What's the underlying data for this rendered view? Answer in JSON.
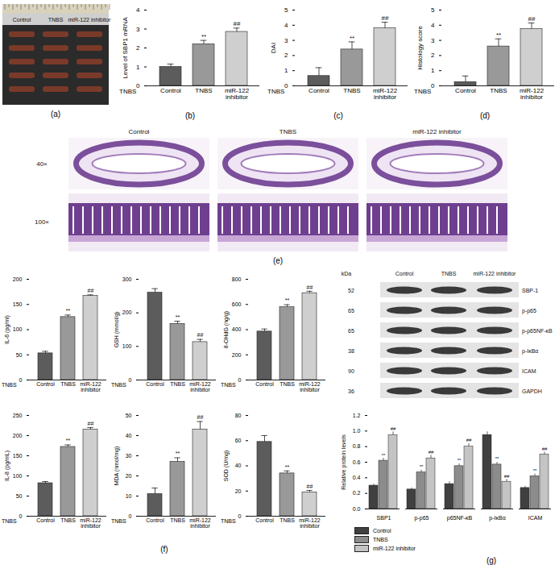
{
  "panel_labels": [
    "(a)",
    "(b)",
    "(c)",
    "(d)",
    "(e)",
    "(f)",
    "(g)"
  ],
  "images": {
    "a": {
      "columns": [
        "Control",
        "TNBS",
        "miR-122 inhibitor"
      ]
    },
    "e": {
      "columns": [
        "Control",
        "TNBS",
        "miR-122 inhibitor"
      ],
      "rows": [
        "40×",
        "100×"
      ]
    },
    "g_blot": {
      "kda_label": "kDa",
      "columns": [
        "Control",
        "TNBS",
        "miR-122 inhibitor"
      ],
      "rows": [
        {
          "kda": 52,
          "label": "SBP-1"
        },
        {
          "kda": 65,
          "label": "p-p65"
        },
        {
          "kda": 65,
          "label": "p-p65NF-κB"
        },
        {
          "kda": 38,
          "label": "p-IκBα"
        },
        {
          "kda": 90,
          "label": "ICAM"
        },
        {
          "kda": 36,
          "label": "GAPDH"
        }
      ]
    }
  },
  "chart_data": [
    {
      "type": "bar",
      "y_label": "Level of SBP1 mRNA",
      "x_label": "TNBS",
      "categories": [
        "Control",
        "TNBS",
        "miR-122 inhibitor"
      ],
      "values": [
        1.0,
        2.2,
        2.85
      ],
      "errors": [
        0.15,
        0.2,
        0.2
      ],
      "annotations": [
        null,
        "**",
        "##"
      ],
      "colors": [
        "#5c5c5c",
        "#999999",
        "#cfcfcf"
      ],
      "ylim": [
        0,
        4
      ],
      "yticks": [
        0,
        1,
        2,
        3,
        4
      ]
    },
    {
      "type": "bar",
      "y_label": "DAI",
      "x_label": "TNBS",
      "categories": [
        "Control",
        "TNBS",
        "miR-122 inhibitor"
      ],
      "values": [
        0.65,
        2.4,
        3.8
      ],
      "errors": [
        0.55,
        0.5,
        0.4
      ],
      "annotations": [
        null,
        "**",
        "##"
      ],
      "colors": [
        "#5c5c5c",
        "#999999",
        "#cfcfcf"
      ],
      "ylim": [
        0,
        5
      ],
      "yticks": [
        0,
        1,
        2,
        3,
        4,
        5
      ]
    },
    {
      "type": "bar",
      "y_label": "Histology score",
      "x_label": "TNBS",
      "categories": [
        "Control",
        "TNBS",
        "miR-122 inhibitor"
      ],
      "values": [
        0.25,
        2.6,
        3.75
      ],
      "errors": [
        0.4,
        0.5,
        0.4
      ],
      "annotations": [
        null,
        "**",
        "##"
      ],
      "colors": [
        "#5c5c5c",
        "#999999",
        "#cfcfcf"
      ],
      "ylim": [
        0,
        5
      ],
      "yticks": [
        0,
        1,
        2,
        3,
        4,
        5
      ]
    },
    {
      "type": "bar",
      "y_label": "IL-6 (pg/ml)",
      "x_label": "TNBS",
      "categories": [
        "Control",
        "TNBS",
        "miR-122 inhibitor"
      ],
      "values": [
        53,
        125,
        167
      ],
      "errors": [
        4,
        4,
        2
      ],
      "annotations": [
        null,
        "**",
        "##"
      ],
      "colors": [
        "#5c5c5c",
        "#999999",
        "#cfcfcf"
      ],
      "ylim": [
        0,
        200
      ],
      "yticks": [
        0,
        50,
        100,
        150,
        200
      ]
    },
    {
      "type": "bar",
      "y_label": "GSH (mmol/g)",
      "x_label": "TNBS",
      "categories": [
        "Control",
        "TNBS",
        "miR-122 inhibitor"
      ],
      "values": [
        260,
        167,
        113
      ],
      "errors": [
        12,
        8,
        8
      ],
      "annotations": [
        null,
        "**",
        "##"
      ],
      "colors": [
        "#5c5c5c",
        "#999999",
        "#cfcfcf"
      ],
      "ylim": [
        0,
        300
      ],
      "yticks": [
        0,
        100,
        200,
        300
      ]
    },
    {
      "type": "bar",
      "y_label": "8-OHdG (ng/g)",
      "x_label": "TNBS",
      "categories": [
        "Control",
        "TNBS",
        "miR-122 inhibitor"
      ],
      "values": [
        385,
        578,
        690
      ],
      "errors": [
        20,
        20,
        15
      ],
      "annotations": [
        null,
        "**",
        "##"
      ],
      "colors": [
        "#5c5c5c",
        "#999999",
        "#cfcfcf"
      ],
      "ylim": [
        0,
        800
      ],
      "yticks": [
        0,
        200,
        400,
        600,
        800
      ]
    },
    {
      "type": "bar",
      "y_label": "IL-8 (pg/mL)",
      "x_label": "TNBS",
      "categories": [
        "Control",
        "TNBS",
        "miR-122 inhibitor"
      ],
      "values": [
        82,
        172,
        215
      ],
      "errors": [
        4,
        5,
        5
      ],
      "annotations": [
        null,
        "**",
        "##"
      ],
      "colors": [
        "#5c5c5c",
        "#999999",
        "#cfcfcf"
      ],
      "ylim": [
        0,
        250
      ],
      "yticks": [
        0,
        50,
        100,
        150,
        200,
        250
      ]
    },
    {
      "type": "bar",
      "y_label": "MDA (nmol/mg)",
      "x_label": "TNBS",
      "categories": [
        "Control",
        "TNBS",
        "miR-122 inhibitor"
      ],
      "values": [
        11,
        27,
        43
      ],
      "errors": [
        3,
        2,
        4
      ],
      "annotations": [
        null,
        "**",
        "##"
      ],
      "colors": [
        "#5c5c5c",
        "#999999",
        "#cfcfcf"
      ],
      "ylim": [
        0,
        50
      ],
      "yticks": [
        0,
        10,
        20,
        30,
        40,
        50
      ]
    },
    {
      "type": "bar",
      "y_label": "SOD (U/mg)",
      "x_label": "TNBS",
      "categories": [
        "Control",
        "TNBS",
        "miR-122 inhibitor"
      ],
      "values": [
        59,
        34,
        19
      ],
      "errors": [
        5,
        2,
        1.5
      ],
      "annotations": [
        null,
        "**",
        "##"
      ],
      "colors": [
        "#5c5c5c",
        "#999999",
        "#cfcfcf"
      ],
      "ylim": [
        0,
        80
      ],
      "yticks": [
        0,
        20,
        40,
        60,
        80
      ]
    },
    {
      "type": "grouped_bar",
      "y_label": "Relative protein levels",
      "categories": [
        "SBP1",
        "p-p65",
        "p65NF-κB",
        "p-IκBα",
        "ICAM"
      ],
      "series": [
        {
          "name": "Control",
          "color": "#404040",
          "values": [
            0.3,
            0.25,
            0.32,
            0.95,
            0.27
          ],
          "errors": [
            0.02,
            0.02,
            0.03,
            0.04,
            0.02
          ],
          "annotations": [
            null,
            null,
            null,
            null,
            null
          ]
        },
        {
          "name": "TNBS",
          "color": "#8c8c8c",
          "values": [
            0.62,
            0.47,
            0.55,
            0.57,
            0.42
          ],
          "errors": [
            0.03,
            0.03,
            0.03,
            0.03,
            0.03
          ],
          "annotations": [
            "**",
            "**",
            "**",
            "**",
            "**"
          ]
        },
        {
          "name": "miR-122 inhibitor",
          "color": "#c4c4c4",
          "values": [
            0.95,
            0.65,
            0.8,
            0.35,
            0.7
          ],
          "errors": [
            0.04,
            0.04,
            0.04,
            0.03,
            0.03
          ],
          "annotations": [
            "##",
            "##",
            "##",
            "##",
            "##"
          ]
        }
      ],
      "ylim": [
        0,
        1.2
      ],
      "yticks": [
        {
          "value": 0,
          "label": "0.0"
        },
        0.2,
        0.4,
        0.6,
        0.8,
        {
          "value": 1,
          "label": "1.0"
        },
        1.2
      ],
      "legend": "bottom"
    }
  ]
}
